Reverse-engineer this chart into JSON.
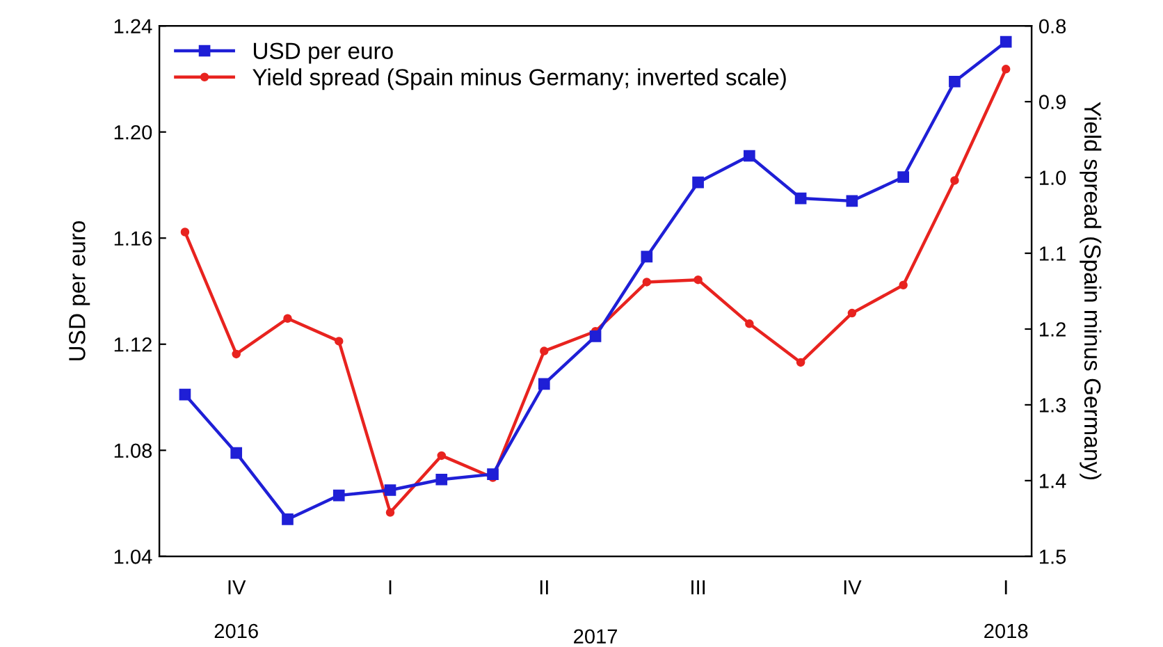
{
  "chart_data": {
    "type": "line",
    "ylabel": "USD per euro",
    "y2label": "Yield spread (Spain minus Germany)",
    "categories": [
      null,
      "IV\n\n2016",
      null,
      null,
      "I",
      null,
      null,
      "II",
      null,
      null,
      "III",
      null,
      null,
      "IV",
      null,
      null,
      "I\n\n2018"
    ],
    "annotations": [
      "2017"
    ],
    "series": [
      {
        "name": "USD per euro",
        "color": "#1f1fd6",
        "marker": "square",
        "values": [
          1.101,
          1.079,
          1.054,
          1.063,
          1.065,
          1.069,
          1.071,
          1.105,
          1.123,
          1.153,
          1.181,
          1.191,
          1.175,
          1.174,
          1.183,
          1.219,
          1.234
        ]
      },
      {
        "name": "Yield spread (Spain minus Germany; inverted scale)",
        "color": "#e8231f",
        "marker": "circle",
        "axis": "y2",
        "values": [
          1.072,
          1.233,
          1.186,
          1.216,
          1.442,
          1.367,
          1.396,
          1.229,
          1.203,
          1.138,
          1.135,
          1.193,
          1.244,
          1.179,
          1.142,
          1.004,
          0.857
        ]
      }
    ],
    "ylim": [
      1.04,
      1.24
    ],
    "yticks": [
      1.04,
      1.08,
      1.12,
      1.16,
      {
        "value": 1.2,
        "label": "1.20"
      },
      1.24
    ],
    "y2lim": [
      1.5,
      0.8
    ],
    "y2ticks": [
      0.8,
      0.9,
      {
        "value": 1.0,
        "label": "1.0"
      },
      1.1,
      1.2,
      1.3,
      1.4,
      1.5
    ],
    "legend": "top left",
    "grid": false,
    "line_style": "solid"
  }
}
